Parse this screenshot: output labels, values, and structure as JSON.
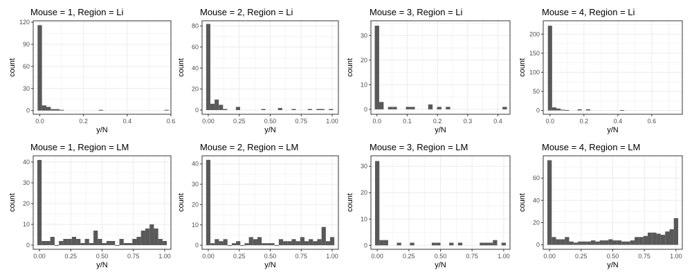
{
  "colors": {
    "bar": "#595959",
    "grid": "#ebebeb",
    "border": "#333333",
    "tick_text": "#4d4d4d"
  },
  "chart_data": [
    {
      "type": "bar",
      "title": "Mouse = 1, Region = Li",
      "xlabel": "y/N",
      "ylabel": "count",
      "xlim": [
        -0.03,
        0.6
      ],
      "ylim": [
        -5,
        122
      ],
      "xticks": [
        0,
        0.2,
        0.4,
        0.6
      ],
      "xtick_labels": [
        "0.0",
        "0.2",
        "0.4",
        "0.6"
      ],
      "yticks": [
        0,
        30,
        60,
        90,
        120
      ],
      "ytick_labels": [
        "0",
        "30",
        "60",
        "90",
        "120"
      ],
      "bin_width": 0.02,
      "bins": [
        [
          0.0,
          116
        ],
        [
          0.02,
          7
        ],
        [
          0.04,
          5
        ],
        [
          0.06,
          2
        ],
        [
          0.08,
          2
        ],
        [
          0.1,
          1
        ],
        [
          0.28,
          1
        ],
        [
          0.58,
          1
        ]
      ]
    },
    {
      "type": "bar",
      "title": "Mouse = 2, Region = Li",
      "xlabel": "y/N",
      "ylabel": "count",
      "xlim": [
        -0.05,
        1.05
      ],
      "ylim": [
        -4,
        85
      ],
      "xticks": [
        0,
        0.25,
        0.5,
        0.75,
        1
      ],
      "xtick_labels": [
        "0.00",
        "0.25",
        "0.50",
        "0.75",
        "1.00"
      ],
      "yticks": [
        0,
        20,
        40,
        60,
        80
      ],
      "ytick_labels": [
        "0",
        "20",
        "40",
        "60",
        "80"
      ],
      "bin_width": 0.034,
      "bins": [
        [
          0.0,
          82
        ],
        [
          0.034,
          6
        ],
        [
          0.068,
          10
        ],
        [
          0.102,
          5
        ],
        [
          0.136,
          1
        ],
        [
          0.24,
          3
        ],
        [
          0.445,
          1
        ],
        [
          0.58,
          2
        ],
        [
          0.69,
          1
        ],
        [
          0.82,
          1
        ],
        [
          0.89,
          1
        ],
        [
          0.92,
          1
        ],
        [
          0.99,
          1
        ]
      ]
    },
    {
      "type": "bar",
      "title": "Mouse = 3, Region = Li",
      "xlabel": "y/N",
      "ylabel": "count",
      "xlim": [
        -0.02,
        0.44
      ],
      "ylim": [
        -2,
        36
      ],
      "xticks": [
        0,
        0.1,
        0.2,
        0.3,
        0.4
      ],
      "xtick_labels": [
        "0.0",
        "0.1",
        "0.2",
        "0.3",
        "0.4"
      ],
      "yticks": [
        0,
        10,
        20,
        30
      ],
      "ytick_labels": [
        "0",
        "10",
        "20",
        "30"
      ],
      "bin_width": 0.0147,
      "bins": [
        [
          0.0,
          34
        ],
        [
          0.0147,
          3
        ],
        [
          0.044,
          1
        ],
        [
          0.0587,
          1
        ],
        [
          0.103,
          1
        ],
        [
          0.118,
          1
        ],
        [
          0.1767,
          2
        ],
        [
          0.206,
          1
        ],
        [
          0.235,
          1
        ],
        [
          0.4225,
          1
        ]
      ]
    },
    {
      "type": "bar",
      "title": "Mouse = 4, Region = Li",
      "xlabel": "y/N",
      "ylabel": "count",
      "xlim": [
        -0.04,
        0.78
      ],
      "ylim": [
        -10,
        235
      ],
      "xticks": [
        0,
        0.2,
        0.4,
        0.6
      ],
      "xtick_labels": [
        "0.0",
        "0.2",
        "0.4",
        "0.6"
      ],
      "yticks": [
        0,
        50,
        100,
        150,
        200
      ],
      "ytick_labels": [
        "0",
        "50",
        "100",
        "150",
        "200"
      ],
      "bin_width": 0.025,
      "bins": [
        [
          0.0,
          222
        ],
        [
          0.025,
          8
        ],
        [
          0.05,
          5
        ],
        [
          0.075,
          2
        ],
        [
          0.1,
          1
        ],
        [
          0.175,
          3
        ],
        [
          0.225,
          3
        ],
        [
          0.425,
          1
        ]
      ]
    },
    {
      "type": "bar",
      "title": "Mouse = 1, Region = LM",
      "xlabel": "y/N",
      "ylabel": "count",
      "xlim": [
        -0.05,
        1.05
      ],
      "ylim": [
        -2,
        43
      ],
      "xticks": [
        0,
        0.25,
        0.5,
        0.75,
        1
      ],
      "xtick_labels": [
        "0.00",
        "0.25",
        "0.50",
        "0.75",
        "1.00"
      ],
      "yticks": [
        0,
        10,
        20,
        30,
        40
      ],
      "ytick_labels": [
        "0",
        "10",
        "20",
        "30",
        "40"
      ],
      "bin_width": 0.0345,
      "bins": [
        [
          0.0,
          41
        ],
        [
          0.0345,
          2
        ],
        [
          0.069,
          2
        ],
        [
          0.1035,
          4
        ],
        [
          0.138,
          0
        ],
        [
          0.1725,
          2
        ],
        [
          0.207,
          3
        ],
        [
          0.2415,
          3
        ],
        [
          0.276,
          4
        ],
        [
          0.3105,
          3
        ],
        [
          0.345,
          1
        ],
        [
          0.3795,
          3
        ],
        [
          0.414,
          1
        ],
        [
          0.4485,
          7
        ],
        [
          0.483,
          3
        ],
        [
          0.5175,
          1
        ],
        [
          0.552,
          2
        ],
        [
          0.5865,
          2
        ],
        [
          0.621,
          0
        ],
        [
          0.6555,
          3
        ],
        [
          0.69,
          1
        ],
        [
          0.7245,
          1
        ],
        [
          0.759,
          3
        ],
        [
          0.7935,
          4
        ],
        [
          0.828,
          7
        ],
        [
          0.8625,
          8
        ],
        [
          0.897,
          10
        ],
        [
          0.9315,
          8
        ],
        [
          0.966,
          3
        ],
        [
          1.0,
          2
        ]
      ]
    },
    {
      "type": "bar",
      "title": "Mouse = 2, Region = LM",
      "xlabel": "y/N",
      "ylabel": "count",
      "xlim": [
        -0.05,
        1.05
      ],
      "ylim": [
        -2,
        44
      ],
      "xticks": [
        0,
        0.25,
        0.5,
        0.75,
        1
      ],
      "xtick_labels": [
        "0.00",
        "0.25",
        "0.50",
        "0.75",
        "1.00"
      ],
      "yticks": [
        0,
        10,
        20,
        30,
        40
      ],
      "ytick_labels": [
        "0",
        "10",
        "20",
        "30",
        "40"
      ],
      "bin_width": 0.0345,
      "bins": [
        [
          0.0,
          42
        ],
        [
          0.0345,
          1
        ],
        [
          0.069,
          3
        ],
        [
          0.1035,
          2
        ],
        [
          0.138,
          3
        ],
        [
          0.1725,
          0
        ],
        [
          0.207,
          1
        ],
        [
          0.2415,
          2
        ],
        [
          0.276,
          0
        ],
        [
          0.3105,
          1
        ],
        [
          0.345,
          4
        ],
        [
          0.3795,
          3
        ],
        [
          0.414,
          4
        ],
        [
          0.4485,
          1
        ],
        [
          0.483,
          1
        ],
        [
          0.5175,
          1
        ],
        [
          0.552,
          0
        ],
        [
          0.5865,
          3
        ],
        [
          0.621,
          2
        ],
        [
          0.6555,
          2
        ],
        [
          0.69,
          3
        ],
        [
          0.7245,
          2
        ],
        [
          0.759,
          4
        ],
        [
          0.7935,
          2
        ],
        [
          0.828,
          3
        ],
        [
          0.8625,
          2
        ],
        [
          0.897,
          3
        ],
        [
          0.9315,
          9
        ],
        [
          0.966,
          2
        ],
        [
          1.0,
          4
        ]
      ]
    },
    {
      "type": "bar",
      "title": "Mouse = 3, Region = LM",
      "xlabel": "y/N",
      "ylabel": "count",
      "xlim": [
        -0.05,
        1.05
      ],
      "ylim": [
        -1.5,
        34
      ],
      "xticks": [
        0,
        0.25,
        0.5,
        0.75,
        1
      ],
      "xtick_labels": [
        "0.00",
        "0.25",
        "0.50",
        "0.75",
        "1.00"
      ],
      "yticks": [
        0,
        10,
        20,
        30
      ],
      "ytick_labels": [
        "0",
        "10",
        "20",
        "30"
      ],
      "bin_width": 0.0345,
      "bins": [
        [
          0.0,
          32
        ],
        [
          0.0345,
          2
        ],
        [
          0.069,
          2
        ],
        [
          0.1725,
          1
        ],
        [
          0.276,
          1
        ],
        [
          0.4485,
          1
        ],
        [
          0.483,
          1
        ],
        [
          0.5865,
          1
        ],
        [
          0.6555,
          1
        ],
        [
          0.828,
          1
        ],
        [
          0.8625,
          1
        ],
        [
          0.9315,
          2
        ],
        [
          0.897,
          1
        ],
        [
          1.0,
          1
        ]
      ]
    },
    {
      "type": "bar",
      "title": "Mouse = 4, Region = LM",
      "xlabel": "y/N",
      "ylabel": "count",
      "xlim": [
        -0.05,
        1.05
      ],
      "ylim": [
        -4,
        80
      ],
      "xticks": [
        0,
        0.25,
        0.5,
        0.75,
        1
      ],
      "xtick_labels": [
        "0.00",
        "0.25",
        "0.50",
        "0.75",
        "1.00"
      ],
      "yticks": [
        0,
        20,
        40,
        60
      ],
      "ytick_labels": [
        "0",
        "20",
        "40",
        "60"
      ],
      "bin_width": 0.0345,
      "bins": [
        [
          0.0,
          76
        ],
        [
          0.0345,
          7
        ],
        [
          0.069,
          5
        ],
        [
          0.1035,
          5
        ],
        [
          0.138,
          7
        ],
        [
          0.1725,
          3
        ],
        [
          0.207,
          2
        ],
        [
          0.2415,
          3
        ],
        [
          0.276,
          3
        ],
        [
          0.3105,
          3
        ],
        [
          0.345,
          4
        ],
        [
          0.3795,
          3
        ],
        [
          0.414,
          4
        ],
        [
          0.4485,
          4
        ],
        [
          0.483,
          5
        ],
        [
          0.5175,
          4
        ],
        [
          0.552,
          4
        ],
        [
          0.5865,
          3
        ],
        [
          0.621,
          3
        ],
        [
          0.6555,
          4
        ],
        [
          0.69,
          7
        ],
        [
          0.7245,
          7
        ],
        [
          0.759,
          8
        ],
        [
          0.7935,
          11
        ],
        [
          0.828,
          11
        ],
        [
          0.8625,
          10
        ],
        [
          0.897,
          9
        ],
        [
          0.9315,
          12
        ],
        [
          0.966,
          14
        ],
        [
          1.0,
          24
        ]
      ]
    }
  ]
}
